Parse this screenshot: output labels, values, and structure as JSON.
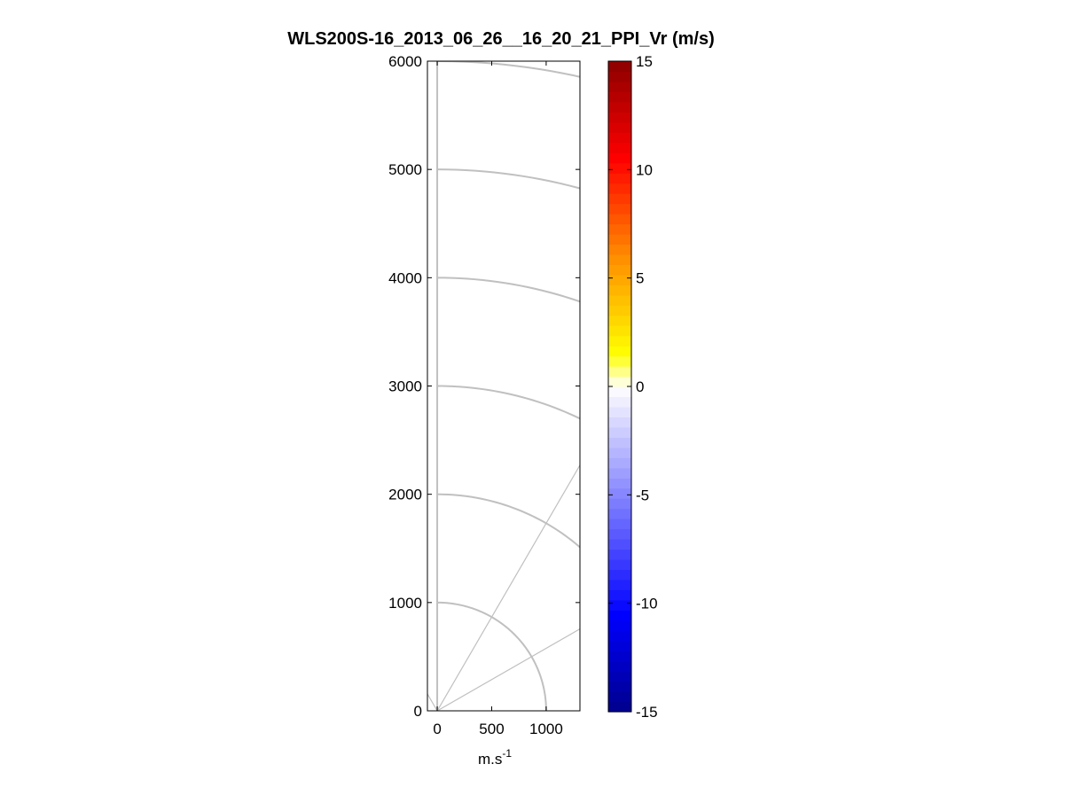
{
  "chart_data": {
    "type": "heatmap",
    "title": "WLS200S-16_2013_06_26__16_20_21_PPI_Vr (m/s)",
    "xlabel": "m.s",
    "xlabel_sup": "-1",
    "ylabel": "",
    "xlim": [
      -90,
      1310
    ],
    "ylim": [
      0,
      6000
    ],
    "xticks": [
      0,
      500,
      1000
    ],
    "yticks": [
      0,
      1000,
      2000,
      3000,
      4000,
      5000,
      6000
    ],
    "polar_grid": {
      "range_rings": [
        1000,
        2000,
        3000,
        4000,
        5000,
        6000
      ],
      "spoke_angles_deg": [
        30,
        60,
        90,
        120
      ],
      "color": "#c0c0c0"
    },
    "data_points": [],
    "colorbar": {
      "min": -15,
      "max": 15,
      "ticks": [
        -15,
        -10,
        -5,
        0,
        5,
        10,
        15
      ],
      "colormap": "blue-white-yellow-red",
      "colors": {
        "min": "#00008c",
        "blue": "#0000ff",
        "white": "#ffffff",
        "yellow": "#ffff00",
        "orange": "#ff8c00",
        "red": "#ff0000",
        "max": "#8c0000"
      }
    }
  }
}
